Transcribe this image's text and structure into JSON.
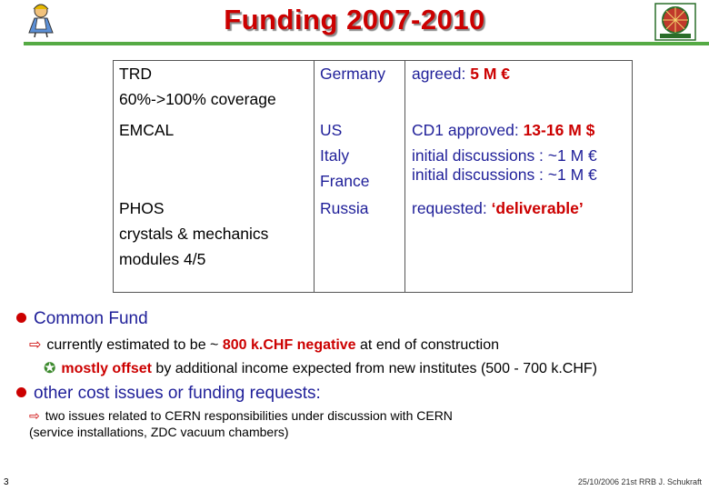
{
  "title": "Funding 2007-2010",
  "table": {
    "trd_label": "TRD",
    "trd_coverage": "60%->100% coverage",
    "germany": "Germany",
    "germany_agreed_text": "agreed: ",
    "germany_amount": "5 M €",
    "emcal_label": "EMCAL",
    "us": "US",
    "italy": "Italy",
    "france": "France",
    "us_text": "CD1 approved: ",
    "us_amount": "13-16 M $",
    "italy_text": "initial discussions : ~1 M €",
    "france_text": "initial discussions : ~1 M €",
    "phos_label": "PHOS",
    "phos_line2": "crystals & mechanics",
    "phos_line3": "modules 4/5",
    "russia": "Russia",
    "russia_text": "requested:  ",
    "russia_deliverable": "‘deliverable’"
  },
  "bullets": {
    "common_fund": "Common Fund",
    "cf_sub1_a": "currently estimated to be ~ ",
    "cf_sub1_b": "800 k.CHF negative",
    "cf_sub1_c": " at end of construction",
    "cf_sub2_a": "mostly offset",
    "cf_sub2_b": " by additional income expected from new institutes (500 - 700 k.CHF)",
    "other_costs": "other cost issues or funding requests:",
    "oc_sub1_line1": "two issues related to CERN responsibilities under discussion with CERN",
    "oc_sub1_line2": "(service installations, ZDC vacuum chambers)"
  },
  "footer": {
    "page_number": "3",
    "meta": "25/10/2006 21st RRB J. Schukraft"
  },
  "icons": {
    "logo_left": "alice-character-icon",
    "logo_right": "alice-experiment-logo-icon"
  },
  "colors": {
    "title": "#cc0000",
    "accent_blue": "#1f1f99",
    "rule_green": "#55aa44",
    "bullet_red": "#cc0000"
  }
}
